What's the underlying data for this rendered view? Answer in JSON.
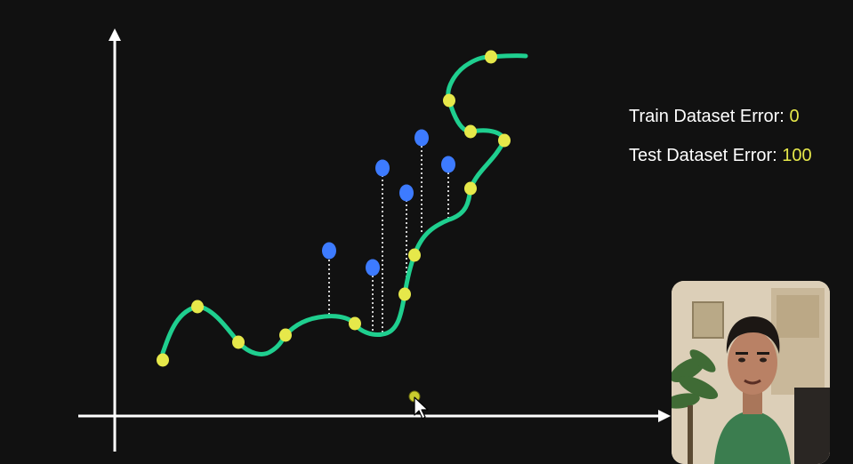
{
  "stats": {
    "train_label": "Train Dataset Error:",
    "train_value": "0",
    "test_label": "Test Dataset Error:",
    "test_value": "100"
  },
  "colors": {
    "background": "#111111",
    "axis": "#ffffff",
    "curve": "#1fcf8f",
    "train_point": "#e6e84a",
    "test_point": "#3d7bff",
    "value_highlight": "#e6e84a"
  },
  "icons": {
    "cursor": "mouse-pointer-icon"
  }
}
